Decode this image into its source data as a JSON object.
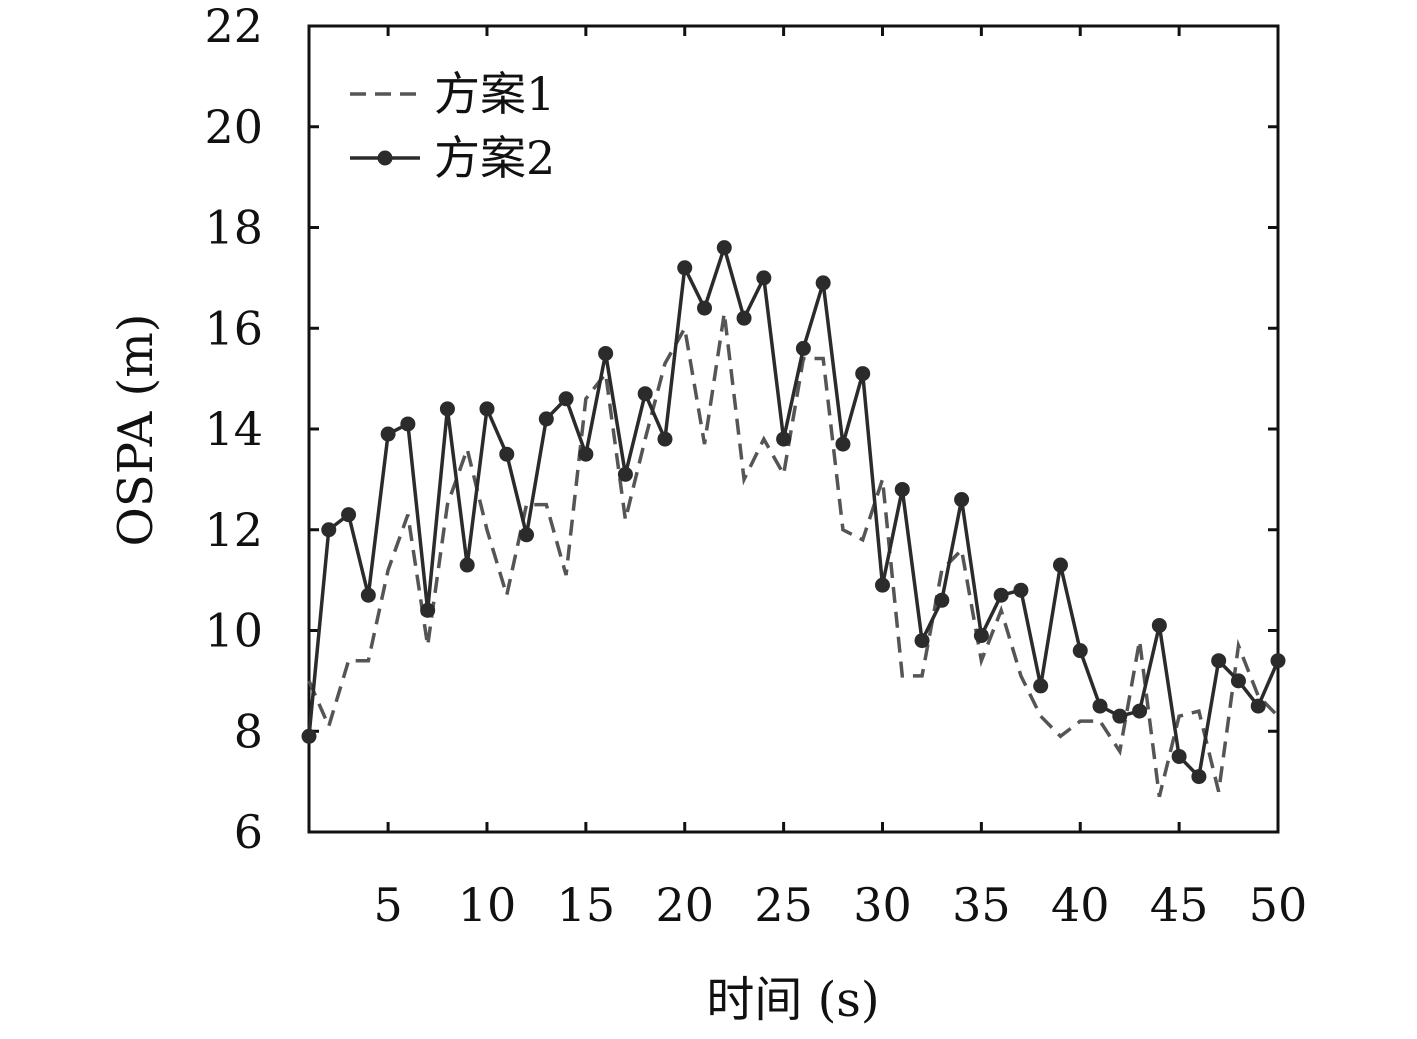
{
  "chart_data": {
    "type": "line",
    "title": "",
    "xlabel": "时间 (s)",
    "ylabel": "OSPA (m)",
    "xlim": [
      1,
      50
    ],
    "ylim": [
      6,
      22
    ],
    "xticks": [
      5,
      10,
      15,
      20,
      25,
      30,
      35,
      40,
      45,
      50
    ],
    "yticks": [
      6,
      8,
      10,
      12,
      14,
      16,
      18,
      20,
      22
    ],
    "grid": false,
    "legend_position": "top-left",
    "x": [
      1,
      2,
      3,
      4,
      5,
      6,
      7,
      8,
      9,
      10,
      11,
      12,
      13,
      14,
      15,
      16,
      17,
      18,
      19,
      20,
      21,
      22,
      23,
      24,
      25,
      26,
      27,
      28,
      29,
      30,
      31,
      32,
      33,
      34,
      35,
      36,
      37,
      38,
      39,
      40,
      41,
      42,
      43,
      44,
      45,
      46,
      47,
      48,
      49,
      50
    ],
    "series": [
      {
        "name": "方案1",
        "style": "dashed",
        "color": "#555555",
        "values": [
          9.0,
          8.1,
          9.4,
          9.4,
          11.2,
          12.3,
          9.7,
          12.5,
          13.6,
          12.0,
          10.7,
          12.5,
          12.5,
          11.1,
          14.6,
          15.1,
          12.2,
          13.8,
          15.3,
          16.0,
          13.7,
          16.3,
          13.0,
          13.8,
          13.1,
          15.4,
          15.4,
          12.0,
          11.8,
          13.0,
          9.1,
          9.1,
          11.2,
          11.6,
          9.4,
          10.4,
          9.1,
          8.3,
          7.9,
          8.2,
          8.2,
          7.6,
          9.8,
          6.7,
          8.3,
          8.4,
          6.8,
          9.7,
          8.7,
          8.3
        ]
      },
      {
        "name": "方案2",
        "style": "solid-markers",
        "color": "#2b2b2b",
        "values": [
          7.9,
          12.0,
          12.3,
          10.7,
          13.9,
          14.1,
          10.4,
          14.4,
          11.3,
          14.4,
          13.5,
          11.9,
          14.2,
          14.6,
          13.5,
          15.5,
          13.1,
          14.7,
          13.8,
          17.2,
          16.4,
          17.6,
          16.2,
          17.0,
          13.8,
          15.6,
          16.9,
          13.7,
          15.1,
          10.9,
          12.8,
          9.8,
          10.6,
          12.6,
          9.9,
          10.7,
          10.8,
          8.9,
          11.3,
          9.6,
          8.5,
          8.3,
          8.4,
          10.1,
          7.5,
          7.1,
          9.4,
          9.0,
          8.5,
          9.4
        ]
      }
    ]
  }
}
